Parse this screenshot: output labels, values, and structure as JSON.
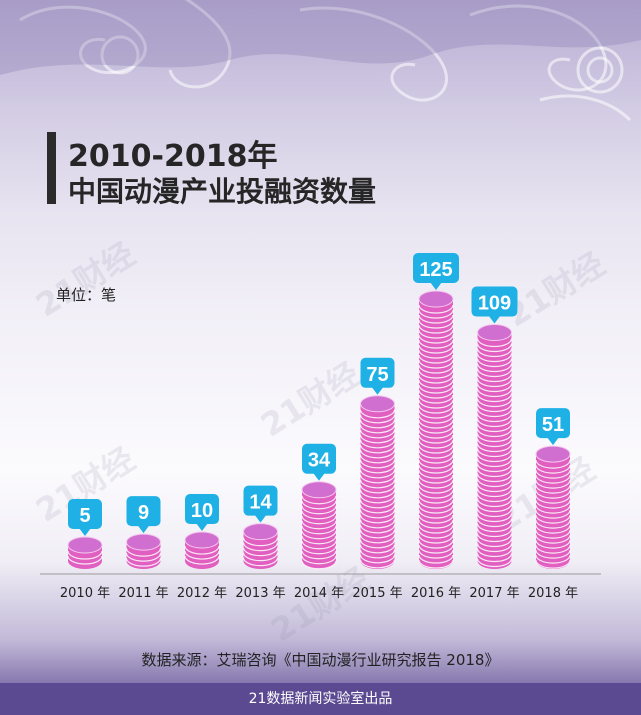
{
  "header": {
    "title_line1": "2010-2018年",
    "title_line2": "中国动漫产业投融资数量"
  },
  "unit_label": "单位：笔",
  "watermark": "21财经",
  "chart_data": {
    "type": "bar",
    "categories": [
      "2010 年",
      "2011 年",
      "2012 年",
      "2013 年",
      "2014 年",
      "2015 年",
      "2016 年",
      "2017 年",
      "2018 年"
    ],
    "values": [
      5,
      9,
      10,
      14,
      34,
      75,
      125,
      109,
      51
    ],
    "title": "2010-2018年 中国动漫产业投融资数量",
    "ylabel": "单位：笔",
    "ylim": [
      0,
      125
    ],
    "grid": false,
    "legend": "none"
  },
  "source": "数据来源：艾瑞咨询《中国动漫行业研究报告 2018》",
  "footer": "21数据新闻实验室出品",
  "colors": {
    "bar_face": "#e15fc0",
    "bar_top": "#d06fd0",
    "label_bg": "#1fb1e6",
    "footer_bg": "#5b4a92"
  }
}
